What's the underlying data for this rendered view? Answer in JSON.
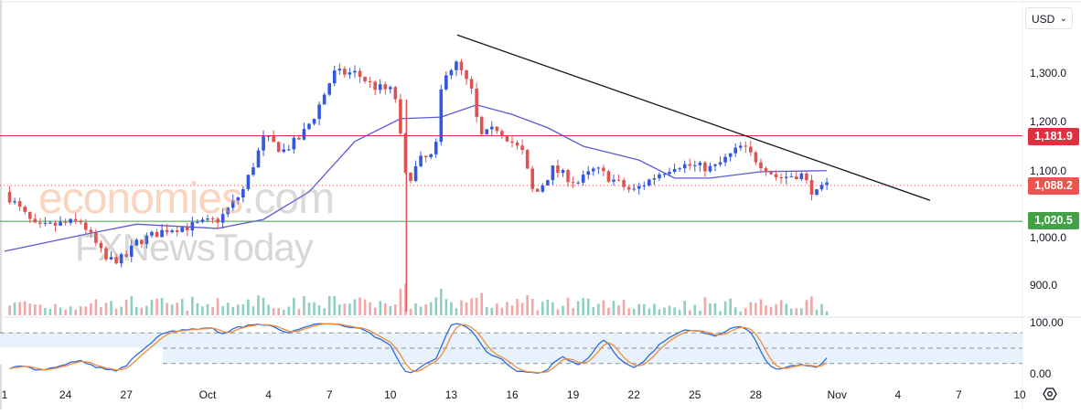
{
  "currency_selector": {
    "value": "USD"
  },
  "watermarks": [
    "economies.com",
    "FXNewsToday"
  ],
  "colors": {
    "up": "#3358e0",
    "down": "#e05252",
    "vol_up": "#8fcfc0",
    "vol_down": "#f2a7a7",
    "ma": "#5a5ad8",
    "resistance": "#e03040",
    "support": "#43a047",
    "last": "#ef5350",
    "trendline": "#131722",
    "stoch_k": "#2f6bd8",
    "stoch_d": "#f28c3a",
    "stoch_band": "#e8f2fc"
  },
  "chart_data": {
    "type": "candlestick",
    "price_axis": {
      "range": [
        880,
        1380
      ],
      "ticks": [
        "1,300.0",
        "1,200.0",
        "1,100.0",
        "1,000.0",
        "900.0"
      ],
      "tick_values": [
        1300,
        1200,
        1100,
        1000,
        900
      ]
    },
    "time_axis": {
      "ticks": [
        "1",
        "24",
        "27",
        "Oct",
        "4",
        "7",
        "10",
        "13",
        "16",
        "19",
        "22",
        "25",
        "28",
        "Nov",
        "4",
        "7",
        "10"
      ],
      "tick_dates": [
        "Sep 21",
        "Sep 24",
        "Sep 27",
        "Oct 1",
        "Oct 4",
        "Oct 7",
        "Oct 10",
        "Oct 13",
        "Oct 16",
        "Oct 19",
        "Oct 22",
        "Oct 25",
        "Oct 28",
        "Nov 1",
        "Nov 4",
        "Nov 7",
        "Nov 10"
      ]
    },
    "price_path": [
      [
        "Sep 21 00:00",
        1076
      ],
      [
        "Sep 22 14:00",
        1007
      ],
      [
        "Sep 23 17:00",
        1015
      ],
      [
        "Sep 24 19:00",
        1020
      ],
      [
        "Sep 26 00:00",
        947
      ],
      [
        "Sep 26 22:00",
        950
      ],
      [
        "Sep 27 12:00",
        981
      ],
      [
        "Sep 29 02:00",
        1007
      ],
      [
        "Sep 30 00:00",
        1010
      ],
      [
        "Oct 1 14:00",
        1024
      ],
      [
        "Oct 2 17:00",
        1076
      ],
      [
        "Oct 3 19:00",
        1179
      ],
      [
        "Oct 4 17:00",
        1153
      ],
      [
        "Oct 5 14:00",
        1179
      ],
      [
        "Oct 6 07:00",
        1222
      ],
      [
        "Oct 7 05:00",
        1300
      ],
      [
        "Oct 8 07:00",
        1300
      ],
      [
        "Oct 9 05:00",
        1274
      ],
      [
        "Oct 10 05:00",
        1265
      ],
      [
        "Oct 10 19:00",
        1093
      ],
      [
        "Oct 11 12:00",
        1136
      ],
      [
        "Oct 12 05:00",
        1145
      ],
      [
        "Oct 12 14:00",
        1300
      ],
      [
        "Oct 13 07:00",
        1317
      ],
      [
        "Oct 14 00:00",
        1265
      ],
      [
        "Oct 14 10:00",
        1179
      ],
      [
        "Oct 15 07:00",
        1197
      ],
      [
        "Oct 16 12:00",
        1150
      ],
      [
        "Oct 17 02:00",
        1067
      ],
      [
        "Oct 18 00:00",
        1119
      ],
      [
        "Oct 19 05:00",
        1093
      ],
      [
        "Oct 20 02:00",
        1119
      ],
      [
        "Oct 21 22:00",
        1076
      ],
      [
        "Oct 23 05:00",
        1110
      ],
      [
        "Oct 24 02:00",
        1128
      ],
      [
        "Oct 25 22:00",
        1120
      ],
      [
        "Oct 27 07:00",
        1162
      ],
      [
        "Oct 28 05:00",
        1130
      ],
      [
        "Oct 29 02:00",
        1102
      ],
      [
        "Oct 30 05:00",
        1110
      ],
      [
        "Oct 30 22:00",
        1070
      ],
      [
        "Oct 31 12:00",
        1088
      ]
    ],
    "moving_average": [
      [
        "Sep 21 00:00",
        964
      ],
      [
        "Sep 25 06:00",
        998
      ],
      [
        "Sep 27 12:00",
        1015
      ],
      [
        "Oct 1 12:00",
        1007
      ],
      [
        "Oct 3 18:00",
        1024
      ],
      [
        "Oct 6 00:00",
        1076
      ],
      [
        "Oct 8 06:00",
        1171
      ],
      [
        "Oct 10 12:00",
        1214
      ],
      [
        "Oct 12 12:00",
        1217
      ],
      [
        "Oct 14 06:00",
        1240
      ],
      [
        "Oct 16 00:00",
        1222
      ],
      [
        "Oct 17 18:00",
        1197
      ],
      [
        "Oct 19 12:00",
        1162
      ],
      [
        "Oct 22 06:00",
        1136
      ],
      [
        "Oct 24 00:00",
        1102
      ],
      [
        "Oct 25 18:00",
        1102
      ],
      [
        "Oct 28 06:00",
        1114
      ],
      [
        "Oct 31 12:00",
        1116
      ]
    ],
    "trendline": [
      [
        "Oct 13 07:00",
        1372
      ],
      [
        "Nov 5 14:00",
        1060
      ]
    ],
    "levels": [
      {
        "label": "1,181.9",
        "value": 1181.9,
        "style": "solid",
        "color": "resistance"
      },
      {
        "label": "1,088.2",
        "value": 1088.2,
        "style": "dotted",
        "color": "last"
      },
      {
        "label": "1,020.5",
        "value": 1020.5,
        "style": "solid",
        "color": "support"
      }
    ],
    "stochastic": {
      "axis_ticks": [
        "100.00",
        "0.00"
      ],
      "range": [
        0,
        100
      ],
      "bands": [
        80,
        50,
        20
      ]
    }
  }
}
